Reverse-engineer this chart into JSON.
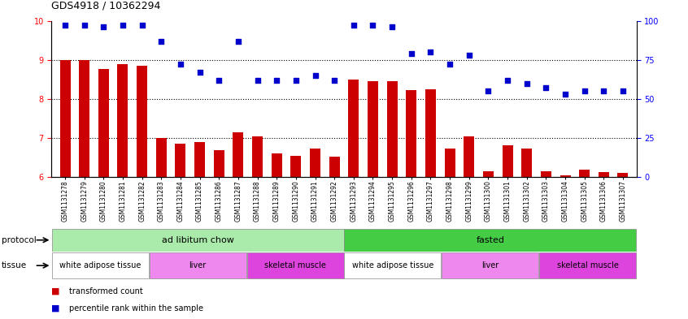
{
  "title": "GDS4918 / 10362294",
  "samples": [
    "GSM1131278",
    "GSM1131279",
    "GSM1131280",
    "GSM1131281",
    "GSM1131282",
    "GSM1131283",
    "GSM1131284",
    "GSM1131285",
    "GSM1131286",
    "GSM1131287",
    "GSM1131288",
    "GSM1131289",
    "GSM1131290",
    "GSM1131291",
    "GSM1131292",
    "GSM1131293",
    "GSM1131294",
    "GSM1131295",
    "GSM1131296",
    "GSM1131297",
    "GSM1131298",
    "GSM1131299",
    "GSM1131300",
    "GSM1131301",
    "GSM1131302",
    "GSM1131303",
    "GSM1131304",
    "GSM1131305",
    "GSM1131306",
    "GSM1131307"
  ],
  "transformed_count": [
    9.0,
    9.0,
    8.77,
    8.9,
    8.85,
    7.0,
    6.85,
    6.9,
    6.68,
    7.15,
    7.05,
    6.6,
    6.55,
    6.72,
    6.52,
    8.5,
    8.45,
    8.45,
    8.22,
    8.25,
    6.72,
    7.05,
    6.15,
    6.82,
    6.72,
    6.15,
    6.05,
    6.18,
    6.12,
    6.1
  ],
  "percentile_rank": [
    97,
    97,
    96,
    97,
    97,
    87,
    72,
    67,
    62,
    87,
    62,
    62,
    62,
    65,
    62,
    97,
    97,
    96,
    79,
    80,
    72,
    78,
    55,
    62,
    60,
    57,
    53,
    55,
    55,
    55
  ],
  "ylim_left": [
    6,
    10
  ],
  "ylim_right": [
    0,
    100
  ],
  "yticks_left": [
    6,
    7,
    8,
    9,
    10
  ],
  "yticks_right": [
    0,
    25,
    50,
    75,
    100
  ],
  "bar_color": "#cc0000",
  "dot_color": "#0000cc",
  "protocol_groups": [
    {
      "label": "ad libitum chow",
      "start": 0,
      "end": 14,
      "color": "#aaeaaa"
    },
    {
      "label": "fasted",
      "start": 15,
      "end": 29,
      "color": "#44cc44"
    }
  ],
  "tissue_groups": [
    {
      "label": "white adipose tissue",
      "start": 0,
      "end": 4,
      "color": "#ffffff"
    },
    {
      "label": "liver",
      "start": 5,
      "end": 9,
      "color": "#ee88ee"
    },
    {
      "label": "skeletal muscle",
      "start": 10,
      "end": 14,
      "color": "#dd44dd"
    },
    {
      "label": "white adipose tissue",
      "start": 15,
      "end": 19,
      "color": "#ffffff"
    },
    {
      "label": "liver",
      "start": 20,
      "end": 24,
      "color": "#ee88ee"
    },
    {
      "label": "skeletal muscle",
      "start": 25,
      "end": 29,
      "color": "#dd44dd"
    }
  ]
}
